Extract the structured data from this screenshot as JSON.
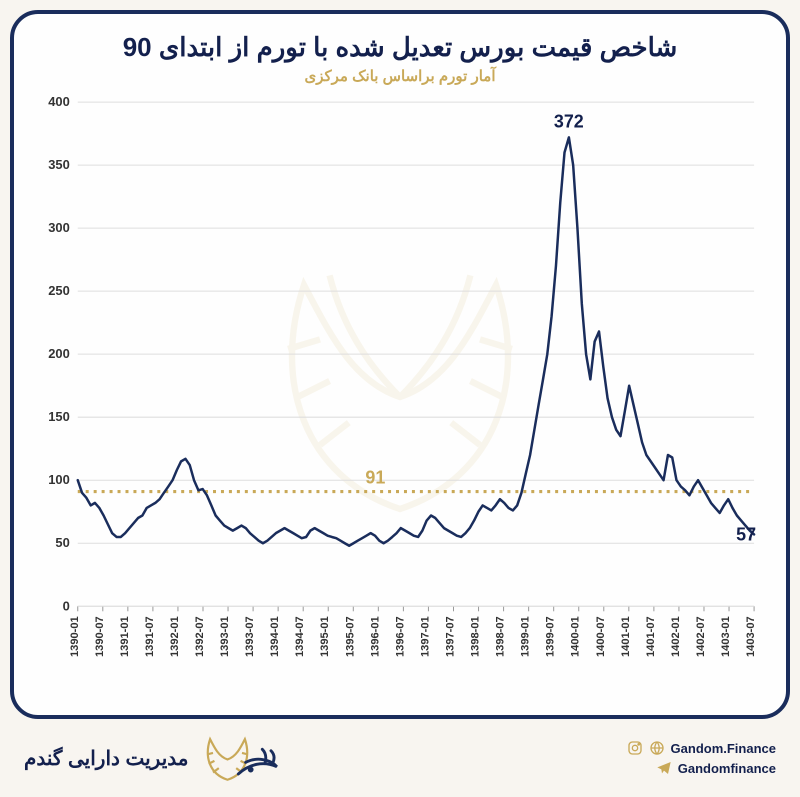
{
  "title": "شاخص قیمت بورس تعدیل شده با تورم از ابتدای 90",
  "subtitle": "آمار تورم براساس بانک مرکزی",
  "chart": {
    "type": "line",
    "line_color": "#1a2d5c",
    "line_width": 2.5,
    "background_color": "#fefefe",
    "grid_color": "#dddddd",
    "reference_line": {
      "value": 91,
      "label": "91",
      "color": "#c9a958",
      "dash": "3 5",
      "width": 3
    },
    "ylim": [
      0,
      400
    ],
    "ytick_step": 50,
    "yticks": [
      0,
      50,
      100,
      150,
      200,
      250,
      300,
      350,
      400
    ],
    "xlabels": [
      "1390-01",
      "1390-07",
      "1391-01",
      "1391-07",
      "1392-01",
      "1392-07",
      "1393-01",
      "1393-07",
      "1394-01",
      "1394-07",
      "1395-01",
      "1395-07",
      "1396-01",
      "1396-07",
      "1397-01",
      "1397-07",
      "1398-01",
      "1398-07",
      "1399-01",
      "1399-07",
      "1400-01",
      "1400-07",
      "1401-01",
      "1401-07",
      "1402-01",
      "1402-07",
      "1403-01",
      "1403-07"
    ],
    "peak_annotation": {
      "label": "372",
      "value": 372,
      "x_index": 114,
      "color": "#13204d",
      "fontsize": 18
    },
    "last_annotation": {
      "label": "57",
      "value": 57,
      "color": "#13204d",
      "fontsize": 18
    },
    "data": [
      100,
      90,
      86,
      80,
      82,
      78,
      72,
      65,
      58,
      55,
      55,
      58,
      62,
      66,
      70,
      72,
      78,
      80,
      82,
      85,
      90,
      95,
      100,
      108,
      115,
      117,
      112,
      100,
      92,
      93,
      88,
      80,
      72,
      68,
      64,
      62,
      60,
      62,
      64,
      62,
      58,
      55,
      52,
      50,
      52,
      55,
      58,
      60,
      62,
      60,
      58,
      56,
      54,
      55,
      60,
      62,
      60,
      58,
      56,
      55,
      54,
      52,
      50,
      48,
      50,
      52,
      54,
      56,
      58,
      56,
      52,
      50,
      52,
      55,
      58,
      62,
      60,
      58,
      56,
      55,
      60,
      68,
      72,
      70,
      66,
      62,
      60,
      58,
      56,
      55,
      58,
      62,
      68,
      75,
      80,
      78,
      76,
      80,
      85,
      82,
      78,
      76,
      80,
      90,
      105,
      120,
      140,
      160,
      180,
      200,
      230,
      270,
      320,
      360,
      372,
      350,
      300,
      240,
      200,
      180,
      210,
      218,
      190,
      165,
      150,
      140,
      135,
      155,
      175,
      160,
      145,
      130,
      120,
      115,
      110,
      105,
      100,
      120,
      118,
      100,
      95,
      92,
      88,
      95,
      100,
      94,
      88,
      82,
      78,
      74,
      80,
      85,
      78,
      72,
      68,
      64,
      60,
      57
    ],
    "x_count": 158
  },
  "footer": {
    "brand_text": "مدیریت دارایی گندم",
    "social1": "Gandom.Finance",
    "social2": "Gandomfinance"
  },
  "colors": {
    "frame": "#1a2d5c",
    "gold": "#c9a958",
    "bg": "#f8f5f0"
  }
}
